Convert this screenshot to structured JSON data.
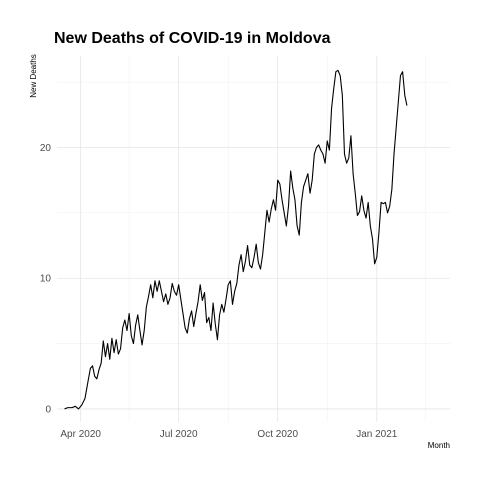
{
  "chart_data": {
    "type": "line",
    "title": "New Deaths of COVID-19 in Moldova",
    "xlabel": "Month",
    "ylabel": "New Deaths",
    "xlim": [
      "2020-03-10",
      "2021-03-10"
    ],
    "ylim": [
      -1,
      27
    ],
    "y_ticks": [
      0,
      10,
      20
    ],
    "y_minor_ticks": [
      5,
      15,
      25
    ],
    "x_ticks": [
      {
        "date": "2020-04-01",
        "label": "Apr 2020"
      },
      {
        "date": "2020-07-01",
        "label": "Jul 2020"
      },
      {
        "date": "2020-10-01",
        "label": "Oct 2020"
      },
      {
        "date": "2021-01-01",
        "label": "Jan 2021"
      }
    ],
    "x_minor_ticks": [
      "2020-05-16",
      "2020-08-16",
      "2020-11-16",
      "2021-02-15"
    ],
    "grid": true,
    "series": [
      {
        "color": "#000000",
        "points": [
          [
            "2020-03-17",
            0
          ],
          [
            "2020-03-20",
            0.1
          ],
          [
            "2020-03-24",
            0.1
          ],
          [
            "2020-03-27",
            0.2
          ],
          [
            "2020-03-30",
            0
          ],
          [
            "2020-04-02",
            0.3
          ],
          [
            "2020-04-05",
            0.8
          ],
          [
            "2020-04-08",
            2.2
          ],
          [
            "2020-04-10",
            3.1
          ],
          [
            "2020-04-12",
            3.3
          ],
          [
            "2020-04-14",
            2.5
          ],
          [
            "2020-04-16",
            2.3
          ],
          [
            "2020-04-18",
            3.0
          ],
          [
            "2020-04-20",
            3.5
          ],
          [
            "2020-04-22",
            5.2
          ],
          [
            "2020-04-24",
            4.0
          ],
          [
            "2020-04-26",
            5.0
          ],
          [
            "2020-04-28",
            3.8
          ],
          [
            "2020-04-30",
            5.4
          ],
          [
            "2020-05-02",
            4.3
          ],
          [
            "2020-05-04",
            5.3
          ],
          [
            "2020-05-06",
            4.2
          ],
          [
            "2020-05-08",
            4.6
          ],
          [
            "2020-05-10",
            6.2
          ],
          [
            "2020-05-12",
            6.8
          ],
          [
            "2020-05-14",
            6.0
          ],
          [
            "2020-05-16",
            7.3
          ],
          [
            "2020-05-18",
            5.6
          ],
          [
            "2020-05-20",
            5.0
          ],
          [
            "2020-05-22",
            6.4
          ],
          [
            "2020-05-24",
            7.2
          ],
          [
            "2020-05-26",
            6.0
          ],
          [
            "2020-05-28",
            4.9
          ],
          [
            "2020-05-30",
            6.0
          ],
          [
            "2020-06-01",
            7.8
          ],
          [
            "2020-06-03",
            8.6
          ],
          [
            "2020-06-05",
            9.5
          ],
          [
            "2020-06-07",
            8.5
          ],
          [
            "2020-06-09",
            9.8
          ],
          [
            "2020-06-11",
            9.0
          ],
          [
            "2020-06-13",
            9.8
          ],
          [
            "2020-06-15",
            9.0
          ],
          [
            "2020-06-17",
            8.2
          ],
          [
            "2020-06-19",
            8.8
          ],
          [
            "2020-06-21",
            8.0
          ],
          [
            "2020-06-23",
            8.5
          ],
          [
            "2020-06-25",
            9.6
          ],
          [
            "2020-06-27",
            9.0
          ],
          [
            "2020-06-29",
            8.7
          ],
          [
            "2020-07-01",
            9.5
          ],
          [
            "2020-07-03",
            8.4
          ],
          [
            "2020-07-05",
            7.3
          ],
          [
            "2020-07-07",
            6.2
          ],
          [
            "2020-07-09",
            5.8
          ],
          [
            "2020-07-11",
            6.9
          ],
          [
            "2020-07-13",
            7.5
          ],
          [
            "2020-07-15",
            6.3
          ],
          [
            "2020-07-17",
            7.3
          ],
          [
            "2020-07-19",
            8.2
          ],
          [
            "2020-07-21",
            9.5
          ],
          [
            "2020-07-23",
            8.3
          ],
          [
            "2020-07-25",
            8.9
          ],
          [
            "2020-07-27",
            6.6
          ],
          [
            "2020-07-29",
            7.0
          ],
          [
            "2020-07-31",
            6.0
          ],
          [
            "2020-08-02",
            8.1
          ],
          [
            "2020-08-04",
            6.5
          ],
          [
            "2020-08-06",
            5.3
          ],
          [
            "2020-08-08",
            7.2
          ],
          [
            "2020-08-10",
            8.0
          ],
          [
            "2020-08-12",
            7.4
          ],
          [
            "2020-08-14",
            8.4
          ],
          [
            "2020-08-16",
            9.5
          ],
          [
            "2020-08-18",
            9.8
          ],
          [
            "2020-08-20",
            8.0
          ],
          [
            "2020-08-22",
            9.0
          ],
          [
            "2020-08-24",
            9.6
          ],
          [
            "2020-08-26",
            11.0
          ],
          [
            "2020-08-28",
            11.8
          ],
          [
            "2020-08-30",
            10.5
          ],
          [
            "2020-09-01",
            11.3
          ],
          [
            "2020-09-03",
            12.5
          ],
          [
            "2020-09-05",
            11.0
          ],
          [
            "2020-09-07",
            10.8
          ],
          [
            "2020-09-09",
            11.6
          ],
          [
            "2020-09-11",
            12.6
          ],
          [
            "2020-09-13",
            11.2
          ],
          [
            "2020-09-15",
            10.7
          ],
          [
            "2020-09-17",
            11.8
          ],
          [
            "2020-09-19",
            13.5
          ],
          [
            "2020-09-21",
            15.2
          ],
          [
            "2020-09-23",
            14.3
          ],
          [
            "2020-09-25",
            15.3
          ],
          [
            "2020-09-27",
            16.0
          ],
          [
            "2020-09-29",
            15.2
          ],
          [
            "2020-10-01",
            17.5
          ],
          [
            "2020-10-03",
            17.2
          ],
          [
            "2020-10-05",
            16.0
          ],
          [
            "2020-10-07",
            15.0
          ],
          [
            "2020-10-09",
            14.0
          ],
          [
            "2020-10-11",
            15.5
          ],
          [
            "2020-10-13",
            18.2
          ],
          [
            "2020-10-15",
            16.9
          ],
          [
            "2020-10-17",
            16.0
          ],
          [
            "2020-10-19",
            14.0
          ],
          [
            "2020-10-21",
            13.3
          ],
          [
            "2020-10-23",
            15.8
          ],
          [
            "2020-10-25",
            17.0
          ],
          [
            "2020-10-27",
            17.5
          ],
          [
            "2020-10-29",
            18.0
          ],
          [
            "2020-10-31",
            16.5
          ],
          [
            "2020-11-02",
            17.5
          ],
          [
            "2020-11-04",
            19.5
          ],
          [
            "2020-11-06",
            20.0
          ],
          [
            "2020-11-08",
            20.2
          ],
          [
            "2020-11-10",
            19.8
          ],
          [
            "2020-11-12",
            19.5
          ],
          [
            "2020-11-14",
            18.8
          ],
          [
            "2020-11-16",
            20.5
          ],
          [
            "2020-11-18",
            19.8
          ],
          [
            "2020-11-20",
            23.0
          ],
          [
            "2020-11-22",
            24.5
          ],
          [
            "2020-11-24",
            25.8
          ],
          [
            "2020-11-26",
            25.9
          ],
          [
            "2020-11-28",
            25.5
          ],
          [
            "2020-11-30",
            24.0
          ],
          [
            "2020-12-02",
            19.5
          ],
          [
            "2020-12-04",
            18.8
          ],
          [
            "2020-12-06",
            19.2
          ],
          [
            "2020-12-08",
            20.9
          ],
          [
            "2020-12-10",
            18.0
          ],
          [
            "2020-12-12",
            16.5
          ],
          [
            "2020-12-14",
            14.8
          ],
          [
            "2020-12-16",
            15.1
          ],
          [
            "2020-12-18",
            16.3
          ],
          [
            "2020-12-20",
            15.2
          ],
          [
            "2020-12-22",
            14.6
          ],
          [
            "2020-12-24",
            15.8
          ],
          [
            "2020-12-26",
            14.0
          ],
          [
            "2020-12-28",
            13.0
          ],
          [
            "2020-12-30",
            11.1
          ],
          [
            "2021-01-01",
            11.6
          ],
          [
            "2021-01-03",
            13.5
          ],
          [
            "2021-01-05",
            15.8
          ],
          [
            "2021-01-07",
            15.7
          ],
          [
            "2021-01-09",
            15.8
          ],
          [
            "2021-01-11",
            15.0
          ],
          [
            "2021-01-13",
            15.5
          ],
          [
            "2021-01-15",
            16.8
          ],
          [
            "2021-01-17",
            19.5
          ],
          [
            "2021-01-19",
            21.5
          ],
          [
            "2021-01-21",
            23.5
          ],
          [
            "2021-01-23",
            25.5
          ],
          [
            "2021-01-25",
            25.8
          ],
          [
            "2021-01-27",
            24.0
          ],
          [
            "2021-01-29",
            23.2
          ]
        ]
      }
    ]
  }
}
